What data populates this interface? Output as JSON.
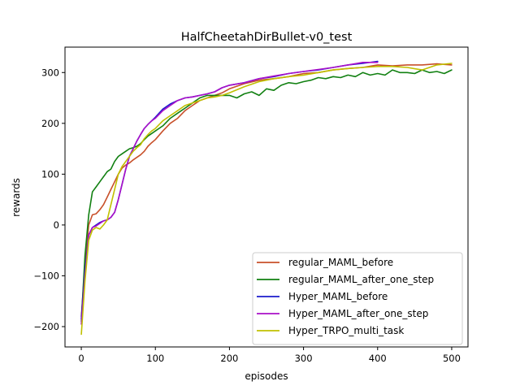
{
  "chart_data": {
    "type": "line",
    "title": "HalfCheetahDirBullet-v0_test",
    "xlabel": "episodes",
    "ylabel": "rewards",
    "xlim": [
      -22,
      522
    ],
    "ylim": [
      -240,
      350
    ],
    "xticks": [
      0,
      100,
      200,
      300,
      400,
      500
    ],
    "yticks": [
      -200,
      -100,
      0,
      100,
      200,
      300
    ],
    "grid": false,
    "legend_position": "lower-right",
    "series": [
      {
        "name": "regular_MAML_before",
        "color": "#c8502a",
        "x": [
          0,
          5,
          10,
          15,
          20,
          25,
          30,
          35,
          40,
          45,
          50,
          55,
          60,
          65,
          70,
          75,
          80,
          85,
          90,
          95,
          100,
          110,
          120,
          130,
          140,
          150,
          160,
          170,
          180,
          190,
          200,
          220,
          240,
          260,
          280,
          300,
          320,
          340,
          360,
          380,
          400,
          420,
          440,
          460,
          480,
          500
        ],
        "y": [
          -180,
          -80,
          0,
          20,
          22,
          30,
          40,
          55,
          70,
          85,
          100,
          112,
          118,
          122,
          128,
          133,
          138,
          145,
          155,
          162,
          168,
          185,
          200,
          210,
          225,
          235,
          245,
          250,
          255,
          260,
          268,
          278,
          285,
          288,
          292,
          298,
          300,
          305,
          308,
          310,
          315,
          313,
          315,
          315,
          317,
          315
        ]
      },
      {
        "name": "regular_MAML_after_one_step",
        "color": "#118011",
        "x": [
          0,
          5,
          10,
          15,
          20,
          25,
          30,
          35,
          40,
          45,
          50,
          55,
          60,
          65,
          70,
          75,
          80,
          85,
          90,
          95,
          100,
          110,
          120,
          130,
          140,
          150,
          160,
          170,
          180,
          190,
          200,
          210,
          220,
          230,
          240,
          250,
          260,
          270,
          280,
          290,
          300,
          310,
          320,
          330,
          340,
          350,
          360,
          370,
          380,
          390,
          400,
          410,
          420,
          430,
          440,
          450,
          460,
          470,
          480,
          490,
          500
        ],
        "y": [
          -190,
          -60,
          20,
          65,
          75,
          85,
          95,
          105,
          110,
          125,
          135,
          140,
          145,
          150,
          152,
          155,
          160,
          168,
          175,
          180,
          185,
          195,
          210,
          220,
          230,
          240,
          250,
          255,
          255,
          255,
          255,
          250,
          258,
          262,
          255,
          268,
          265,
          275,
          280,
          278,
          282,
          285,
          290,
          288,
          292,
          290,
          295,
          292,
          300,
          295,
          298,
          295,
          305,
          300,
          300,
          298,
          305,
          300,
          302,
          298,
          305
        ]
      },
      {
        "name": "Hyper_MAML_before",
        "color": "#1c1ccc",
        "x": [
          0,
          5,
          10,
          15,
          20,
          25,
          30,
          35,
          40,
          45,
          50,
          55,
          60,
          65,
          70,
          75,
          80,
          85,
          90,
          95,
          100,
          110,
          120,
          130,
          140,
          150,
          160,
          170,
          180,
          190,
          200,
          220,
          240,
          260,
          280,
          300,
          320,
          340,
          360,
          380,
          400
        ],
        "y": [
          -185,
          -90,
          -20,
          -5,
          0,
          5,
          8,
          10,
          15,
          25,
          50,
          80,
          110,
          135,
          150,
          165,
          178,
          190,
          198,
          205,
          212,
          228,
          238,
          245,
          250,
          252,
          255,
          258,
          262,
          270,
          275,
          280,
          288,
          292,
          298,
          302,
          305,
          310,
          315,
          318,
          322
        ]
      },
      {
        "name": "Hyper_MAML_after_one_step",
        "color": "#aa10c8",
        "x": [
          0,
          5,
          10,
          15,
          20,
          25,
          30,
          35,
          40,
          45,
          50,
          55,
          60,
          65,
          70,
          75,
          80,
          85,
          90,
          95,
          100,
          110,
          120,
          130,
          140,
          150,
          160,
          170,
          180,
          190,
          200,
          220,
          240,
          260,
          280,
          300,
          320,
          340,
          360,
          380,
          400
        ],
        "y": [
          -195,
          -100,
          -20,
          -5,
          -2,
          3,
          8,
          10,
          15,
          25,
          50,
          80,
          110,
          135,
          150,
          165,
          178,
          190,
          198,
          205,
          210,
          225,
          235,
          245,
          250,
          252,
          255,
          258,
          262,
          270,
          275,
          280,
          288,
          293,
          298,
          302,
          306,
          310,
          315,
          320,
          320
        ]
      },
      {
        "name": "Hyper_TRPO_multi_task",
        "color": "#c0c000",
        "x": [
          0,
          5,
          10,
          15,
          20,
          25,
          30,
          35,
          40,
          45,
          50,
          55,
          60,
          65,
          70,
          75,
          80,
          85,
          90,
          95,
          100,
          110,
          120,
          130,
          140,
          150,
          160,
          170,
          180,
          190,
          200,
          220,
          240,
          260,
          280,
          300,
          320,
          340,
          360,
          380,
          400,
          420,
          440,
          460,
          480,
          500
        ],
        "y": [
          -215,
          -110,
          -30,
          -10,
          -5,
          -8,
          0,
          10,
          40,
          70,
          100,
          115,
          125,
          135,
          145,
          152,
          158,
          170,
          178,
          185,
          190,
          205,
          215,
          225,
          235,
          240,
          245,
          250,
          252,
          255,
          260,
          272,
          282,
          288,
          292,
          295,
          300,
          305,
          308,
          310,
          312,
          312,
          310,
          305,
          315,
          318
        ]
      }
    ]
  }
}
